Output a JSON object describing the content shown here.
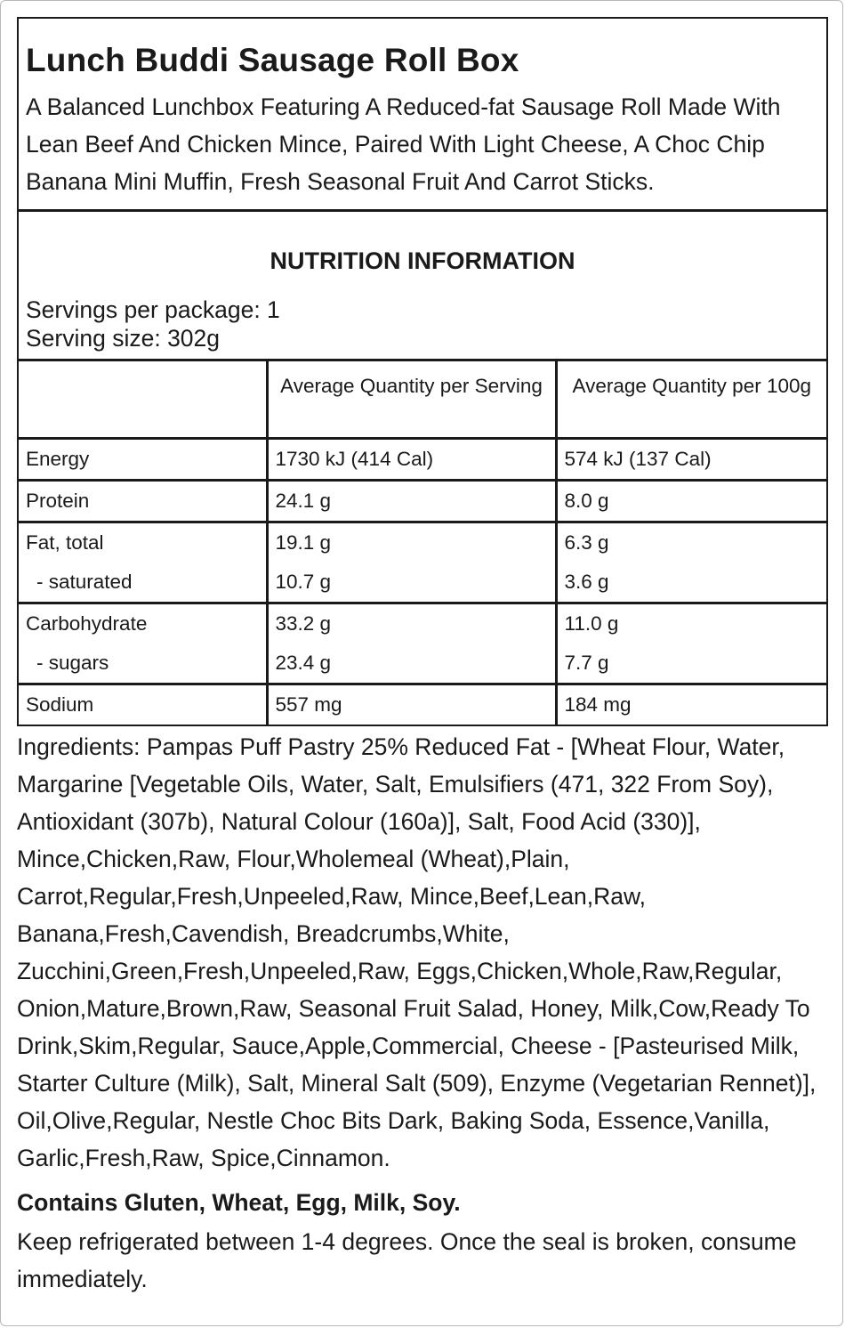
{
  "product": {
    "title": "Lunch Buddi Sausage Roll Box",
    "description": "A Balanced Lunchbox Featuring A Reduced-fat Sausage Roll Made With Lean Beef And Chicken Mince, Paired With Light Cheese, A Choc Chip Banana Mini Muffin, Fresh Seasonal Fruit And Carrot Sticks."
  },
  "nutrition": {
    "heading": "NUTRITION INFORMATION",
    "servings_per_package": "Servings per package: 1",
    "serving_size": "Serving size: 302g",
    "col_serving": "Average Quantity per Serving",
    "col_100g": "Average Quantity per 100g",
    "rows": [
      {
        "name": "Energy",
        "serving": "1730 kJ (414 Cal)",
        "per100": "574 kJ (137 Cal)"
      },
      {
        "name": "Protein",
        "serving": "24.1 g",
        "per100": "8.0 g"
      },
      {
        "name": "Fat, total",
        "serving": "19.1 g",
        "per100": "6.3 g"
      },
      {
        "name": "- saturated",
        "serving": "10.7 g",
        "per100": "3.6 g"
      },
      {
        "name": "Carbohydrate",
        "serving": "33.2 g",
        "per100": "11.0 g"
      },
      {
        "name": "- sugars",
        "serving": "23.4 g",
        "per100": "7.7 g"
      },
      {
        "name": "Sodium",
        "serving": "557 mg",
        "per100": "184 mg"
      }
    ]
  },
  "ingredients": "Ingredients: Pampas Puff Pastry 25% Reduced Fat - [Wheat Flour, Water, Margarine [Vegetable Oils, Water, Salt, Emulsifiers (471, 322 From Soy), Antioxidant (307b), Natural Colour (160a)], Salt, Food Acid (330)], Mince,Chicken,Raw, Flour,Wholemeal (Wheat),Plain, Carrot,Regular,Fresh,Unpeeled,Raw, Mince,Beef,Lean,Raw, Banana,Fresh,Cavendish, Breadcrumbs,White, Zucchini,Green,Fresh,Unpeeled,Raw, Eggs,Chicken,Whole,Raw,Regular, Onion,Mature,Brown,Raw, Seasonal Fruit Salad, Honey, Milk,Cow,Ready To Drink,Skim,Regular, Sauce,Apple,Commercial, Cheese - [Pasteurised Milk, Starter Culture (Milk), Salt, Mineral Salt (509), Enzyme (Vegetarian Rennet)], Oil,Olive,Regular, Nestle Choc Bits Dark, Baking Soda, Essence,Vanilla, Garlic,Fresh,Raw, Spice,Cinnamon.",
  "allergens": "Contains Gluten, Wheat, Egg, Milk, Soy.",
  "storage": "Keep refrigerated between 1-4 degrees. Once the seal is broken, consume immediately."
}
